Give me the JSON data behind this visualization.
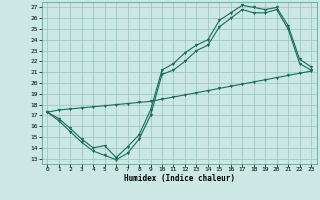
{
  "xlabel": "Humidex (Indice chaleur)",
  "bg_color": "#cce8e4",
  "grid_color": "#96c4be",
  "line_color": "#1a6b5a",
  "xlim": [
    -0.5,
    23.5
  ],
  "ylim": [
    12.5,
    27.5
  ],
  "xticks": [
    0,
    1,
    2,
    3,
    4,
    5,
    6,
    7,
    8,
    9,
    10,
    11,
    12,
    13,
    14,
    15,
    16,
    17,
    18,
    19,
    20,
    21,
    22,
    23
  ],
  "yticks": [
    13,
    14,
    15,
    16,
    17,
    18,
    19,
    20,
    21,
    22,
    23,
    24,
    25,
    26,
    27
  ],
  "line1_x": [
    0,
    1,
    2,
    3,
    4,
    5,
    6,
    7,
    8,
    9,
    10,
    11,
    12,
    13,
    14,
    15,
    16,
    17,
    18,
    19,
    20,
    21,
    22,
    23
  ],
  "line1_y": [
    17.3,
    16.7,
    15.8,
    14.8,
    14.0,
    14.2,
    13.1,
    14.1,
    15.2,
    17.5,
    21.2,
    21.8,
    22.8,
    23.5,
    24.0,
    25.8,
    26.5,
    27.2,
    27.0,
    26.8,
    27.0,
    25.3,
    22.2,
    21.5
  ],
  "line2_x": [
    0,
    1,
    2,
    3,
    4,
    5,
    6,
    7,
    8,
    9,
    10,
    11,
    12,
    13,
    14,
    15,
    16,
    17,
    18,
    19,
    20,
    21,
    22,
    23
  ],
  "line2_y": [
    17.3,
    16.5,
    15.5,
    14.5,
    13.7,
    13.3,
    12.9,
    13.5,
    14.8,
    17.0,
    20.8,
    21.2,
    22.0,
    23.0,
    23.5,
    25.2,
    26.0,
    26.8,
    26.5,
    26.5,
    26.8,
    25.0,
    21.8,
    21.2
  ],
  "line3_x": [
    0,
    1,
    2,
    3,
    4,
    5,
    6,
    7,
    8,
    9,
    10,
    11,
    12,
    13,
    14,
    15,
    16,
    17,
    18,
    19,
    20,
    21,
    22,
    23
  ],
  "line3_y": [
    17.3,
    17.5,
    17.6,
    17.7,
    17.8,
    17.9,
    18.0,
    18.1,
    18.2,
    18.3,
    18.5,
    18.7,
    18.9,
    19.1,
    19.3,
    19.5,
    19.7,
    19.9,
    20.1,
    20.3,
    20.5,
    20.7,
    20.9,
    21.1
  ]
}
